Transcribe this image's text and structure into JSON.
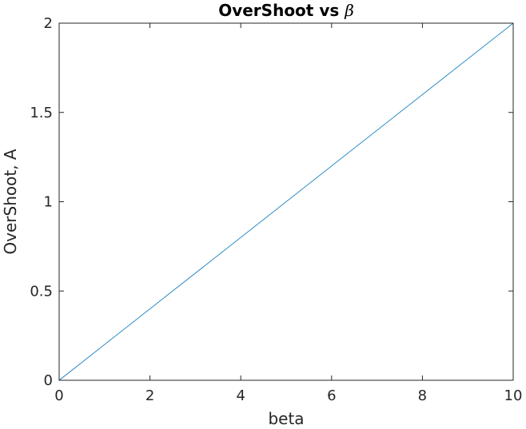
{
  "chart_data": {
    "type": "line",
    "title": "OverShoot vs ",
    "title_symbol": "β",
    "xlabel": "beta",
    "ylabel": "OverShoot, A",
    "xlim": [
      0,
      10
    ],
    "ylim": [
      0,
      2
    ],
    "xticks": [
      0,
      2,
      4,
      6,
      8,
      10
    ],
    "yticks": [
      0,
      0.5,
      1,
      1.5,
      2
    ],
    "xtick_labels": [
      "0",
      "2",
      "4",
      "6",
      "8",
      "10"
    ],
    "ytick_labels": [
      "0",
      "0.5",
      "1",
      "1.5",
      "2"
    ],
    "grid": false,
    "box": true,
    "series": [
      {
        "color": "#0072BD",
        "x": [
          0,
          10
        ],
        "y": [
          0,
          2
        ]
      }
    ]
  }
}
